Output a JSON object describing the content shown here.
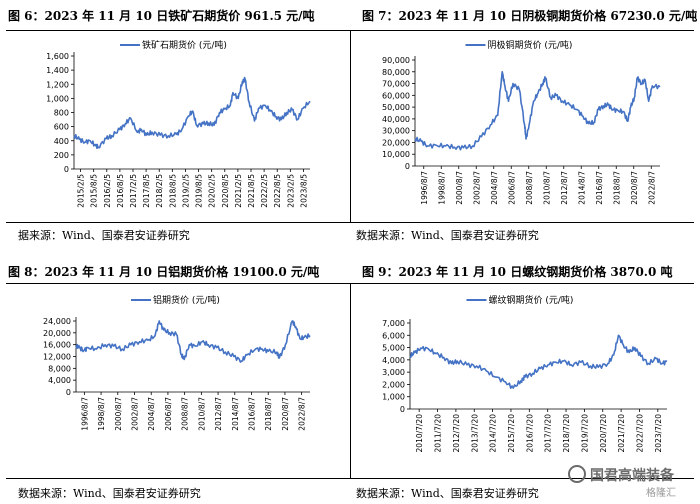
{
  "watermark": {
    "text": "国君高端装备",
    "badge": "格隆汇"
  },
  "charts": [
    {
      "title": "图 6：2023 年 11 月 10 日铁矿石期货价 961.5 元/吨",
      "source": "据来源：Wind、国泰君安证券研究"
    },
    {
      "title": "图 7：2023 年 11 月 10 日阴极铜期货价格 67230.0 元/吨",
      "source": "数据来源：Wind、国泰君安证券研究"
    },
    {
      "title": "图 8：2023 年 11 月 10 日铝期货价格 19100.0 元/吨",
      "source": "数据来源：Wind、国泰君安证券研究"
    },
    {
      "title": "图 9：2023 年 11 月 10 日螺纹钢期货价格 3870.0 吨",
      "source": "数据来源：Wind、国泰君安证券研究"
    }
  ],
  "chart_data": [
    {
      "type": "line",
      "legend": "铁矿石期货价 (元/吨)",
      "color": "#4472C4",
      "ylim": [
        0,
        1600
      ],
      "yticks": [
        "0",
        "200",
        "400",
        "600",
        "800",
        "1,000",
        "1,200",
        "1,400",
        "1,600"
      ],
      "xlim": [
        2015.1,
        2023.86
      ],
      "xticks": [
        "2015/2/5",
        "2015/8/5",
        "2016/2/5",
        "2016/8/5",
        "2017/2/5",
        "2017/8/5",
        "2018/2/5",
        "2018/8/5",
        "2019/2/5",
        "2019/8/5",
        "2020/2/5",
        "2020/8/5",
        "2021/2/5",
        "2021/8/5",
        "2022/2/5",
        "2022/8/5",
        "2023/2/5",
        "2023/8/5"
      ],
      "x": [
        2015.1,
        2015.3,
        2015.5,
        2015.7,
        2015.9,
        2016.0,
        2016.3,
        2016.5,
        2016.8,
        2017.0,
        2017.2,
        2017.45,
        2017.6,
        2017.8,
        2018.0,
        2018.3,
        2018.6,
        2018.9,
        2019.1,
        2019.35,
        2019.5,
        2019.65,
        2019.9,
        2020.1,
        2020.3,
        2020.5,
        2020.7,
        2020.9,
        2021.0,
        2021.2,
        2021.35,
        2021.45,
        2021.6,
        2021.8,
        2021.95,
        2022.2,
        2022.4,
        2022.6,
        2022.8,
        2023.0,
        2023.2,
        2023.4,
        2023.6,
        2023.86
      ],
      "y": [
        470,
        420,
        380,
        400,
        330,
        310,
        430,
        470,
        560,
        640,
        720,
        520,
        560,
        480,
        520,
        480,
        470,
        490,
        560,
        750,
        820,
        620,
        640,
        650,
        620,
        800,
        850,
        900,
        1080,
        1000,
        1240,
        1270,
        950,
        680,
        860,
        900,
        820,
        740,
        700,
        800,
        840,
        700,
        860,
        960
      ]
    },
    {
      "type": "line",
      "legend": "阴极铜期货价 (元/吨)",
      "color": "#4472C4",
      "ylim": [
        0,
        90000
      ],
      "yticks": [
        "0",
        "10,000",
        "20,000",
        "30,000",
        "40,000",
        "50,000",
        "60,000",
        "70,000",
        "80,000",
        "90,000"
      ],
      "xlim": [
        1996.6,
        2023.86
      ],
      "xticks": [
        "1996/8/7",
        "1998/8/7",
        "2000/8/7",
        "2002/8/7",
        "2004/8/7",
        "2006/8/7",
        "2008/8/7",
        "2010/8/7",
        "2012/8/7",
        "2014/8/7",
        "2016/8/7",
        "2018/8/7",
        "2020/8/7",
        "2022/8/7"
      ],
      "x": [
        1996.6,
        1997.3,
        1998.0,
        1999.0,
        2000.0,
        2001.0,
        2002.0,
        2003.0,
        2004.0,
        2005.0,
        2005.8,
        2006.3,
        2006.6,
        2007.0,
        2007.5,
        2008.2,
        2008.8,
        2008.95,
        2009.3,
        2009.8,
        2010.3,
        2010.8,
        2011.1,
        2011.7,
        2012.3,
        2013.0,
        2013.8,
        2014.6,
        2015.3,
        2015.9,
        2016.5,
        2017.0,
        2017.6,
        2018.1,
        2018.6,
        2019.2,
        2019.8,
        2020.25,
        2020.6,
        2021.0,
        2021.35,
        2021.8,
        2022.2,
        2022.6,
        2023.0,
        2023.86
      ],
      "y": [
        23000,
        21000,
        17000,
        17500,
        17000,
        16000,
        15500,
        17000,
        25000,
        35000,
        43000,
        80000,
        68000,
        55000,
        70000,
        65000,
        35000,
        23000,
        35000,
        55000,
        62000,
        70000,
        75000,
        58000,
        60000,
        55000,
        52000,
        48000,
        42000,
        36000,
        37000,
        48000,
        51000,
        52000,
        48000,
        47000,
        46000,
        38000,
        50000,
        58000,
        75000,
        70000,
        73000,
        55000,
        68000,
        67230
      ]
    },
    {
      "type": "line",
      "legend": "铝期货价 (元/吨)",
      "color": "#4472C4",
      "ylim": [
        0,
        24000
      ],
      "yticks": [
        "0",
        "4,000",
        "8,000",
        "12,000",
        "16,000",
        "20,000",
        "24,000"
      ],
      "xlim": [
        1996.6,
        2023.86
      ],
      "xticks": [
        "1996/8/7",
        "1998/8/7",
        "2000/8/7",
        "2002/8/7",
        "2004/8/7",
        "2006/8/7",
        "2008/8/7",
        "2010/8/7",
        "2012/8/7",
        "2014/8/7",
        "2016/8/7",
        "2018/8/7",
        "2020/8/7",
        "2022/8/7"
      ],
      "x": [
        1996.6,
        1997.0,
        1997.5,
        1998.0,
        1999.0,
        2000.0,
        2001.0,
        2002.0,
        2003.0,
        2004.0,
        2005.0,
        2005.8,
        2006.3,
        2006.8,
        2007.5,
        2008.3,
        2008.9,
        2009.2,
        2009.8,
        2010.5,
        2011.3,
        2012.0,
        2013.0,
        2014.0,
        2015.0,
        2015.9,
        2016.5,
        2017.5,
        2018.3,
        2019.0,
        2020.0,
        2020.3,
        2021.0,
        2021.8,
        2022.2,
        2022.7,
        2023.2,
        2023.86
      ],
      "y": [
        15500,
        15000,
        14000,
        15000,
        14500,
        16000,
        15500,
        14500,
        16000,
        17000,
        17500,
        19000,
        24000,
        21000,
        20000,
        19500,
        12500,
        11000,
        16000,
        15500,
        17000,
        16000,
        15000,
        13500,
        12000,
        10500,
        12500,
        14500,
        14500,
        13800,
        13500,
        11500,
        16000,
        24000,
        22000,
        18000,
        18500,
        19100
      ]
    },
    {
      "type": "line",
      "legend": "螺纹钢期货价 (元/吨)",
      "color": "#4472C4",
      "ylim": [
        0,
        7000
      ],
      "yticks": [
        "0",
        "1,000",
        "2,000",
        "3,000",
        "4,000",
        "5,000",
        "6,000",
        "7,000"
      ],
      "xlim": [
        2010.55,
        2023.86
      ],
      "xticks": [
        "2010/7/20",
        "2011/7/20",
        "2012/7/20",
        "2013/7/20",
        "2014/7/20",
        "2015/7/20",
        "2016/7/20",
        "2017/7/20",
        "2018/7/20",
        "2019/7/20",
        "2020/7/20",
        "2021/7/20",
        "2022/7/20",
        "2023/7/20"
      ],
      "x": [
        2010.55,
        2010.8,
        2011.1,
        2011.5,
        2011.9,
        2012.3,
        2012.7,
        2013.0,
        2013.5,
        2014.0,
        2014.5,
        2015.0,
        2015.5,
        2015.9,
        2016.3,
        2016.5,
        2016.9,
        2017.3,
        2017.7,
        2018.1,
        2018.5,
        2018.9,
        2019.4,
        2019.9,
        2020.3,
        2020.8,
        2021.1,
        2021.35,
        2021.6,
        2021.9,
        2022.2,
        2022.5,
        2022.9,
        2023.3,
        2023.6,
        2023.86
      ],
      "y": [
        4300,
        4600,
        4950,
        4900,
        4500,
        4200,
        3700,
        3900,
        3600,
        3500,
        3100,
        2600,
        2200,
        1700,
        2300,
        2600,
        2900,
        3300,
        3600,
        3800,
        3900,
        3600,
        3800,
        3500,
        3400,
        3700,
        4400,
        6000,
        5200,
        4600,
        5000,
        4300,
        3700,
        4100,
        3700,
        3870
      ]
    }
  ]
}
